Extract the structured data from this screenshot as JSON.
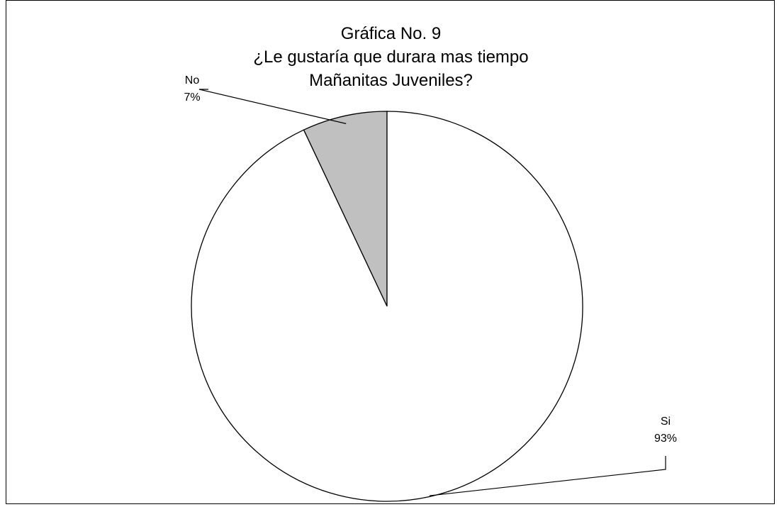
{
  "chart_data": {
    "type": "pie",
    "title": [
      "Gráfica No. 9",
      "¿Le gustaría que durara mas tiempo",
      "Mañanitas Juveniles?"
    ],
    "slices": [
      {
        "label": "No",
        "value": 7,
        "value_label": "7%",
        "color": "#c0c0c0"
      },
      {
        "label": "Si",
        "value": 93,
        "value_label": "93%",
        "color": "#ffffff"
      }
    ],
    "start_angle_deg": 0,
    "direction": "counter-clockwise",
    "legend": "none"
  }
}
